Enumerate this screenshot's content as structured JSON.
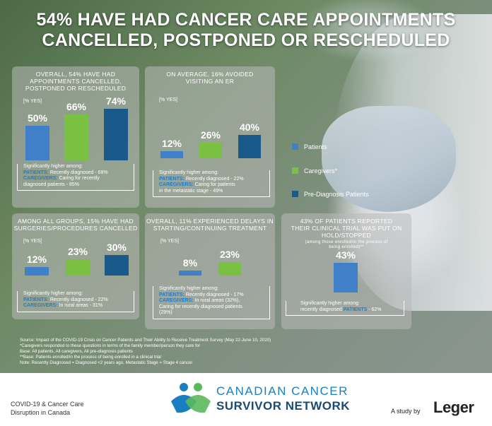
{
  "headline": [
    "54% HAVE HAD CANCER CARE APPOINTMENTS",
    "CANCELLED, POSTPONED OR RESCHEDULED"
  ],
  "colors": {
    "patients": "#3f80c8",
    "caregivers": "#7ac142",
    "prediagnosis": "#1a5a8a"
  },
  "yes_label": "[% YES]",
  "chart_data": [
    {
      "type": "bar",
      "title": "OVERALL, 54% HAVE HAD APPOINTMENTS CANCELLED, POSTPONED OR RESCHEDULED",
      "categories": [
        "Patients",
        "Caregivers*",
        "Pre-Diagnosis Patients"
      ],
      "values": [
        50,
        66,
        74
      ],
      "value_labels": [
        "50%",
        "66%",
        "74%"
      ]
    },
    {
      "type": "bar",
      "title": "ON AVERAGE, 16% AVOIDED VISITING AN ER",
      "categories": [
        "Patients",
        "Caregivers*",
        "Pre-Diagnosis Patients"
      ],
      "values": [
        12,
        26,
        40
      ],
      "value_labels": [
        "12%",
        "26%",
        "40%"
      ]
    },
    {
      "type": "bar",
      "title": "AMONG ALL GROUPS, 15% HAVE HAD SURGERIES/PROCEDURES CANCELLED",
      "categories": [
        "Patients",
        "Caregivers*",
        "Pre-Diagnosis Patients"
      ],
      "values": [
        12,
        23,
        30
      ],
      "value_labels": [
        "12%",
        "23%",
        "30%"
      ]
    },
    {
      "type": "bar",
      "title": "OVERALL, 11% EXPERIENCED DELAYS IN STARTING/CONTINUING TREATMENT",
      "categories": [
        "Patients",
        "Caregivers*"
      ],
      "values": [
        8,
        23
      ],
      "value_labels": [
        "8%",
        "23%"
      ]
    },
    {
      "type": "bar",
      "title": "43% OF PATIENTS REPORTED THEIR CLINICAL TRIAL WAS PUT ON HOLD/STOPPED",
      "subtitle": "(among those enrolled/in the process of being enrolled)**",
      "categories": [
        "Patients"
      ],
      "values": [
        43
      ],
      "value_labels": [
        "43%"
      ]
    }
  ],
  "panels": {
    "p1": {
      "title": [
        "OVERALL, 54% HAVE HAD",
        "APPOINTMENTS CANCELLED,",
        "POSTPONED OR RESCHEDULED"
      ],
      "note": {
        "head": "Significantly higher among:",
        "l1a": "PATIENTS:",
        "l1b": " Recently diagnosed - 68%",
        "l2a": "CAREGIVERS:",
        "l2b": " Caring for recently",
        "l3": "diagnosed patients - 85%"
      }
    },
    "p2": {
      "title": [
        "ON AVERAGE, 16% AVOIDED",
        "VISITING AN ER"
      ],
      "note": {
        "head": "Significantly higher among:",
        "l1a": "PATIENTS:",
        "l1b": " Recently diagnosed - 22%",
        "l2a": "CAREGIVERS:",
        "l2b": " Caring for patients",
        "l3": "in the metastatic stage - 49%"
      }
    },
    "p3": {
      "title": [
        "AMONG ALL GROUPS, 15% HAVE HAD",
        "SURGERIES/PROCEDURES CANCELLED"
      ],
      "note": {
        "head": "Significantly higher among:",
        "l1a": "PATIENTS:",
        "l1b": " Recently diagnosed - 22%",
        "l2a": "CAREGIVERS:",
        "l2b": " In rural areas - 31%"
      }
    },
    "p4": {
      "title": [
        "OVERALL, 11% EXPERIENCED DELAYS IN",
        "STARTING/CONTINUING TREATMENT"
      ],
      "note": {
        "head": "Significantly higher among:",
        "l1a": "PATIENTS:",
        "l1b": " Recently diagnosed - 17%",
        "l2a": "CAREGIVERS:",
        "l2b": " In rural areas (32%),",
        "l3": "Caring for recently diagnosed patients",
        "l4": "(29%)"
      }
    },
    "p5": {
      "title": [
        "43% OF PATIENTS REPORTED",
        "THEIR CLINICAL TRIAL WAS PUT ON",
        "HOLD/STOPPED"
      ],
      "sub": [
        "(among those enrolled/in the process of",
        "being enrolled)**"
      ],
      "note": {
        "head": "Significantly higher among",
        "l1a": "recently diagnosed ",
        "l1b": "PATIENTS",
        "l1c": " - 62%"
      }
    }
  },
  "legend": [
    "Patients",
    "Caregivers*",
    "Pre-Diagnosis Patients"
  ],
  "source": [
    "Source: Impact of the COVID-19 Crisis on Cancer Patients and Their Ability to Receive Treatment Survey (May 22-June 10, 2020)",
    "*Caregivers responded to these questions in terms of the family member/person they care for",
    "Base: All patients, All caregivers, All pre-diagnosis patients",
    "**Base: Patients enrolled/in the process of being enrolled in a clinical trial",
    "Note: Recently Diagnosed = Diagnosed <2 years ago, Metastatic Stage = Stage 4 cancer"
  ],
  "footer": {
    "left": [
      "COVID-19 & Cancer Care",
      "Disruption in Canada"
    ],
    "logo_top": "CANADIAN CANCER",
    "logo_bottom": "SURVIVOR NETWORK",
    "study_by": "A study by",
    "leger": "Leger"
  }
}
